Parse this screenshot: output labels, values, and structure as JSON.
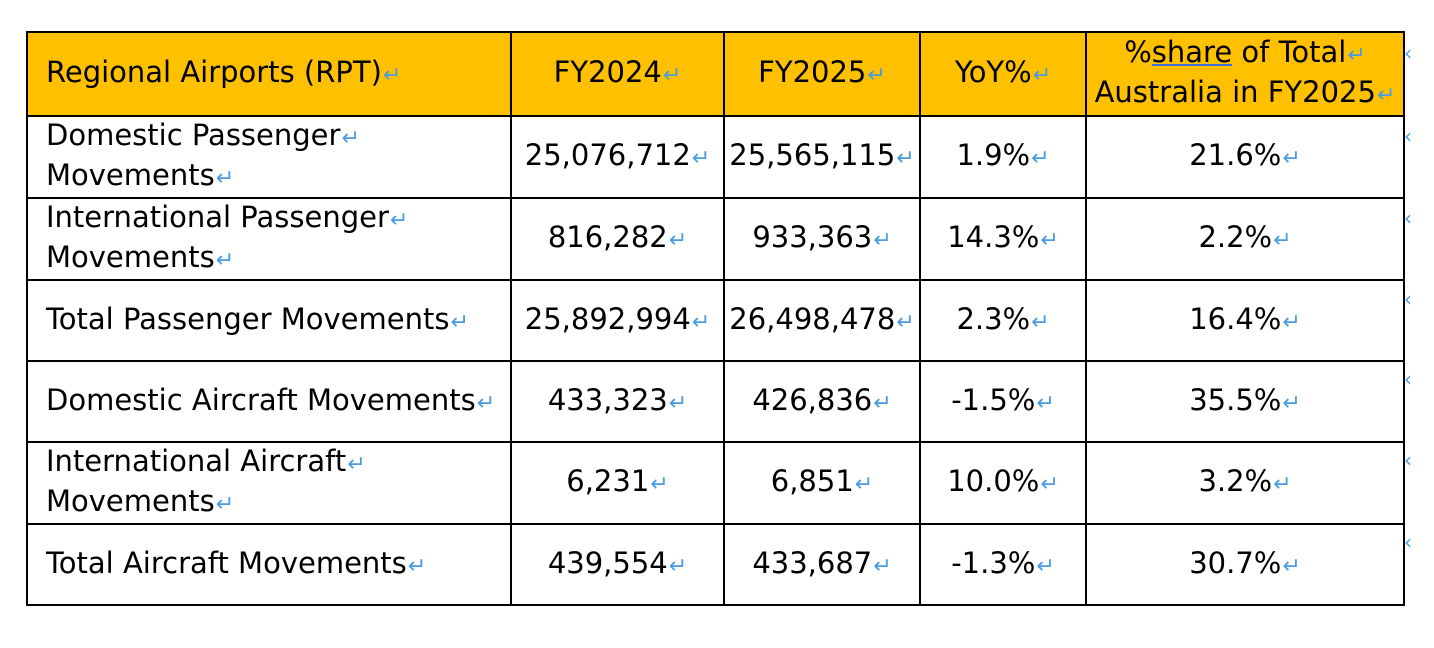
{
  "table": {
    "headers": [
      "Regional Airports (RPT)",
      "FY2024",
      "FY2025",
      "YoY%",
      {
        "line1_prefix": "%",
        "line1_underlined": "share",
        "line1_suffix": " of Total",
        "line2": "Australia in FY2025"
      }
    ],
    "rows": [
      {
        "label_line1": "Domestic Passenger",
        "label_line2": "Movements",
        "fy2024": "25,076,712",
        "fy2025": "25,565,115",
        "yoy": "1.9%",
        "share": "21.6%"
      },
      {
        "label_line1": "International Passenger",
        "label_line2": "Movements",
        "fy2024": "816,282",
        "fy2025": "933,363",
        "yoy": "14.3%",
        "share": "2.2%"
      },
      {
        "label_line1": "Total Passenger Movements",
        "label_line2": "",
        "fy2024": "25,892,994",
        "fy2025": "26,498,478",
        "yoy": "2.3%",
        "share": "16.4%"
      },
      {
        "label_line1": "Domestic Aircraft Movements",
        "label_line2": "",
        "fy2024": "433,323",
        "fy2025": "426,836",
        "yoy": "-1.5%",
        "share": "35.5%"
      },
      {
        "label_line1": "International Aircraft",
        "label_line2": "Movements",
        "fy2024": "6,231",
        "fy2025": "6,851",
        "yoy": "10.0%",
        "share": "3.2%"
      },
      {
        "label_line1": "Total Aircraft Movements",
        "label_line2": "",
        "fy2024": "439,554",
        "fy2025": "433,687",
        "yoy": "-1.3%",
        "share": "30.7%"
      }
    ]
  },
  "marks": {
    "paragraph_mark": "↵",
    "end_of_row_mark": "‹"
  },
  "colors": {
    "header_bg": "#ffc000",
    "mark_color": "#4a9be0",
    "border": "#000000"
  }
}
